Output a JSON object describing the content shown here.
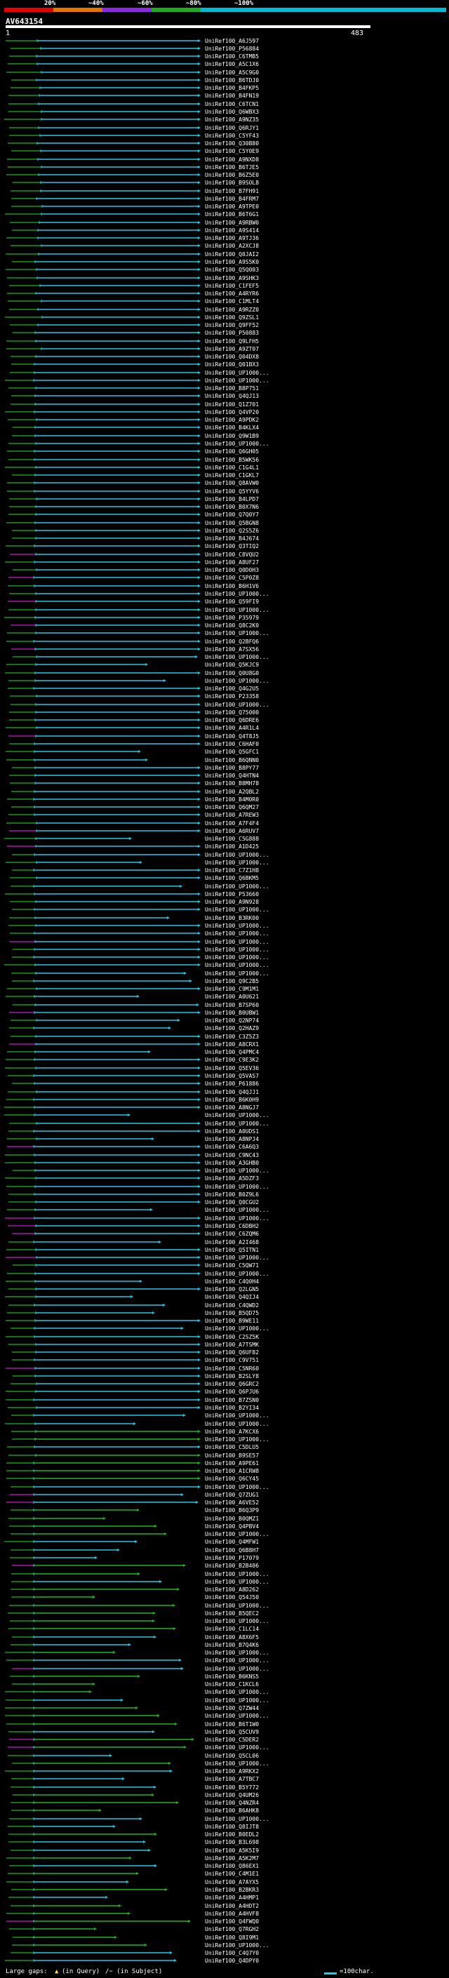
{
  "legend": {
    "labels": [
      "20%",
      "~40%",
      "~60%",
      "~80%",
      "~100%"
    ],
    "colors": [
      "#e60000",
      "#e67300",
      "#8a2be2",
      "#22aa22",
      "#00bcd4"
    ]
  },
  "query": {
    "title": "AV643154",
    "start": "1",
    "end": "483"
  },
  "colors": {
    "green": "#22b422",
    "cyan": "#22c8e6",
    "magenta": "#d018d0",
    "bg": "#000000"
  },
  "footer": {
    "large_gaps_label": "Large gaps:",
    "in_query_label": "(in Query)",
    "in_subject_label": "/~ (in Subject)",
    "scale_label": "=100char."
  },
  "hits": [
    "UniRef100_A6J597",
    "UniRef100_P56884",
    "UniRef100_C6TMB5",
    "UniRef100_A5C1X6",
    "UniRef100_A5C9G0",
    "UniRef100_B6TDJ0",
    "UniRef100_B4FKP5",
    "UniRef100_B4FN19",
    "UniRef100_C6TCN1",
    "UniRef100_Q6WBX3",
    "UniRef100_A9NZ35",
    "UniRef100_Q6RJY1",
    "UniRef100_C5YF43",
    "UniRef100_Q30B80",
    "UniRef100_C5Y0E9",
    "UniRef100_A9NXD8",
    "UniRef100_B6TJE5",
    "UniRef100_B6Z5E0",
    "UniRef100_B9SOL8",
    "UniRef100_B7FH91",
    "UniRef100_B4FRM7",
    "UniRef100_A9TPE0",
    "UniRef100_B6T6G1",
    "UniRef100_A9RBW0",
    "UniRef100_A9S414",
    "UniRef100_A9TJ36",
    "UniRef100_A2XCJ8",
    "UniRef100_Q0JAI2",
    "UniRef100_A9S5K0",
    "UniRef100_Q5Q003",
    "UniRef100_A9SHK3",
    "UniRef100_C1FEF5",
    "UniRef100_A4RYR6",
    "UniRef100_C1MLT4",
    "UniRef100_A9RZZ0",
    "UniRef100_Q9ZSL1",
    "UniRef100_Q9FF52",
    "UniRef100_P50883",
    "UniRef100_Q9LFH5",
    "UniRef100_A9ZT07",
    "UniRef100_Q04DX8",
    "UniRef100_Q01BX3",
    "UniRef100_UP1000...",
    "UniRef100_UP1000...",
    "UniRef100_B8P751",
    "UniRef100_Q4QJ13",
    "UniRef100_Q1Z701",
    "UniRef100_Q4VP20",
    "UniRef100_A9PDK2",
    "UniRef100_B4KLX4",
    "UniRef100_Q9W1B9",
    "UniRef100_UP1000...",
    "UniRef100_Q6GH05",
    "UniRef100_B5WK56",
    "UniRef100_C1G4L1",
    "UniRef100_C1GKL7",
    "UniRef100_Q8AVW0",
    "UniRef100_Q5YYV6",
    "UniRef100_B4LPD7",
    "UniRef100_B0X7N6",
    "UniRef100_Q7Q0Y7",
    "UniRef100_Q5BGN8",
    "UniRef100_Q2S5Z6",
    "UniRef100_B4J674",
    "UniRef100_Q3TIQ2",
    "UniRef100_C8VQU2",
    "UniRef100_A8UF27",
    "UniRef100_Q0D0H3",
    "UniRef100_C5P0Z8",
    "UniRef100_B6H1V6",
    "UniRef100_UP1000...",
    "UniRef100_Q59FI9",
    "UniRef100_UP1000...",
    "UniRef100_P35979",
    "UniRef100_Q8C2K0",
    "UniRef100_UP1000...",
    "UniRef100_Q2BFQ6",
    "UniRef100_A7SX56",
    "UniRef100_UP1000...",
    "UniRef100_Q5KJC9",
    "UniRef100_Q0U8G0",
    "UniRef100_UP1000...",
    "UniRef100_Q4G2U5",
    "UniRef100_P23358",
    "UniRef100_UP1000...",
    "UniRef100_Q75000",
    "UniRef100_Q6DRE6",
    "UniRef100_A4R1L4",
    "UniRef100_Q4T8J5",
    "UniRef100_C6HAF0",
    "UniRef100_Q5GFC1",
    "UniRef100_B6QNN0",
    "UniRef100_B8PY77",
    "UniRef100_Q4HTN4",
    "UniRef100_B8MH78",
    "UniRef100_A2QBL2",
    "UniRef100_B4M0R0",
    "UniRef100_Q6QM27",
    "UniRef100_A7REW3",
    "UniRef100_A7F4F4",
    "UniRef100_A6RUV7",
    "UniRef100_C5G888",
    "UniRef100_A1D425",
    "UniRef100_UP1000...",
    "UniRef100_UP1000...",
    "UniRef100_C7Z1H8",
    "UniRef100_Q6BKM5",
    "UniRef100_UP1000...",
    "UniRef100_P53660",
    "UniRef100_A9N928",
    "UniRef100_UP1000...",
    "UniRef100_B3RK00",
    "UniRef100_UP1000...",
    "UniRef100_UP1000...",
    "UniRef100_UP1000...",
    "UniRef100_UP1000...",
    "UniRef100_UP1000...",
    "UniRef100_UP1000...",
    "UniRef100_UP1000...",
    "UniRef100_Q9C2B5",
    "UniRef100_C9M1M1",
    "UniRef100_A0U621",
    "UniRef100_B7SP60",
    "UniRef100_B0UBW1",
    "UniRef100_Q2NP74",
    "UniRef100_Q2HAZ9",
    "UniRef100_C3Z5Z3",
    "UniRef100_A8CRX1",
    "UniRef100_Q4PMC4",
    "UniRef100_C9E3K2",
    "UniRef100_Q5EV36",
    "UniRef100_Q5VAS7",
    "UniRef100_P61886",
    "UniRef100_Q4QJJ1",
    "UniRef100_B6K0H9",
    "UniRef100_A8NGJ7",
    "UniRef100_UP1000...",
    "UniRef100_UP1000...",
    "UniRef100_A0UDS1",
    "UniRef100_A8NPJ4",
    "UniRef100_C6A6Q3",
    "UniRef100_C9NC43",
    "UniRef100_A3GHB0",
    "UniRef100_UP1000...",
    "UniRef100_A5DZF3",
    "UniRef100_UP1000...",
    "UniRef100_B0Z9L6",
    "UniRef100_Q0CGU2",
    "UniRef100_UP1000...",
    "UniRef100_UP1000...",
    "UniRef100_C6DBH2",
    "UniRef100_C6ZQM6",
    "UniRef100_A2I468",
    "UniRef100_Q5ITN1",
    "UniRef100_UP1000...",
    "UniRef100_C5QW71",
    "UniRef100_UP1000...",
    "UniRef100_C4Q0H4",
    "UniRef100_Q2LGN5",
    "UniRef100_Q4QIJ4",
    "UniRef100_C4QWD2",
    "UniRef100_B5QD75",
    "UniRef100_B9WE11",
    "UniRef100_UP1000...",
    "UniRef100_C2SZ5K",
    "UniRef100_A7TSMK",
    "UniRef100_Q6UF82",
    "UniRef100_C9V751",
    "UniRef100_C5NR60",
    "UniRef100_B2SLY8",
    "UniRef100_Q6GRC2",
    "UniRef100_Q6PJU6",
    "UniRef100_B7ZSN0",
    "UniRef100_B2YI34",
    "UniRef100_UP1000...",
    "UniRef100_UP1000...",
    "UniRef100_A7KCX6",
    "UniRef100_UP1000...",
    "UniRef100_C5DLU5",
    "UniRef100_B9SE57",
    "UniRef100_A9PE61",
    "UniRef100_A1CRW8",
    "UniRef100_Q6CY45",
    "UniRef100_UP1000...",
    "UniRef100_Q7ZUG1",
    "UniRef100_A6VE52",
    "UniRef100_B6Q3P9",
    "UniRef100_B0QMZ1",
    "UniRef100_Q4PBV4",
    "UniRef100_UP1000...",
    "UniRef100_Q4MFW1",
    "UniRef100_Q6B8H7",
    "UniRef100_P17079",
    "UniRef100_B2B406",
    "UniRef100_UP1000...",
    "UniRef100_UP1000...",
    "UniRef100_A8D262",
    "UniRef100_Q54J50",
    "UniRef100_UP1000...",
    "UniRef100_B5QEC2",
    "UniRef100_UP1000...",
    "UniRef100_C1LC14",
    "UniRef100_A8X6F5",
    "UniRef100_B7Q4K6",
    "UniRef100_UP1000...",
    "UniRef100_UP1000...",
    "UniRef100_UP1000...",
    "UniRef100_B6KNS5",
    "UniRef100_C1KCL6",
    "UniRef100_UP1000...",
    "UniRef100_UP1000...",
    "UniRef100_Q7ZW44",
    "UniRef100_UP1000...",
    "UniRef100_B6T1W0",
    "UniRef100_Q5CUV9",
    "UniRef100_C5DER2",
    "UniRef100_UP1000...",
    "UniRef100_Q5CL06",
    "UniRef100_UP1000...",
    "UniRef100_A9RKX2",
    "UniRef100_A7TBC7",
    "UniRef100_B5Y772",
    "UniRef100_Q4UM26",
    "UniRef100_Q4NZR4",
    "UniRef100_B6AHK8",
    "UniRef100_UP1000...",
    "UniRef100_Q8IJT8",
    "UniRef100_B0EDL2",
    "UniRef100_B3L698",
    "UniRef100_A5K5I9",
    "UniRef100_A5K2M7",
    "UniRef100_Q86EX1",
    "UniRef100_C4M1E1",
    "UniRef100_A7AYX5",
    "UniRef100_B2BKR3",
    "UniRef100_A4HMP1",
    "UniRef100_A4HDT2",
    "UniRef100_A4HVF8",
    "UniRef100_Q4FWQ0",
    "UniRef100_Q7RGH2",
    "UniRef100_Q8I9M1",
    "UniRef100_UP1000...",
    "UniRef100_C4Q7Y0",
    "UniRef100_Q4DPY0"
  ]
}
